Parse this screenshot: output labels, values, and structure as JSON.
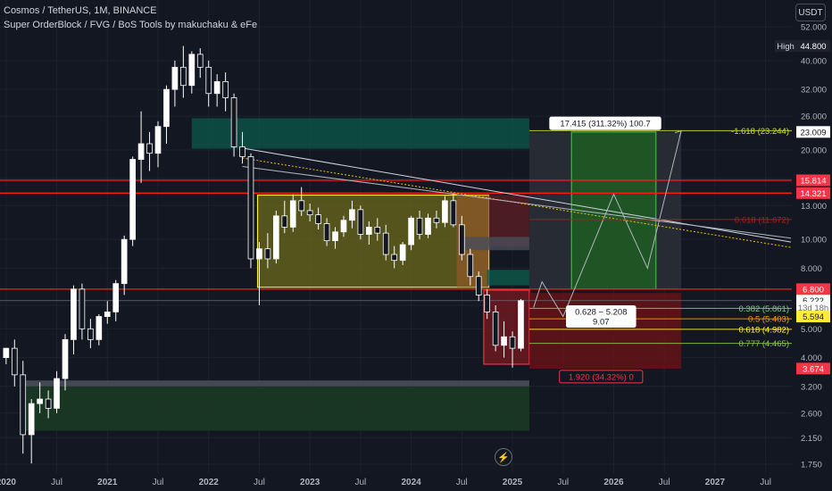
{
  "header": {
    "title": "Cosmos / TetherUS, 1M, BINANCE",
    "indicator": "Super OrderBlock / FVG / BoS Tools by makuchaku & eFe"
  },
  "currency_button": "USDT",
  "tv_logo_glyph": "⚡",
  "colors": {
    "background": "#131722",
    "up_candle": "#ffffff",
    "down_candle": "#ffffff",
    "level_red": "#ff1a1a",
    "zone_yellow": "#ffeb3b",
    "zone_teal": "#26a69a",
    "target_green": "#4caf50",
    "stop_red": "#f23645"
  },
  "chart_data": {
    "type": "candlestick",
    "scale": "log",
    "y_ticks": [
      1.75,
      2.15,
      2.6,
      3.2,
      4.0,
      5.0,
      6.0,
      8.0,
      10.0,
      13.0,
      16.0,
      20.0,
      26.0,
      32.0,
      40.0,
      52.0
    ],
    "y_tick_labels": [
      "1.750",
      "2.150",
      "2.600",
      "3.200",
      "4.000",
      "5.000",
      "6.000",
      "8.000",
      "10.000",
      "13.000",
      "16.000",
      "20.000",
      "26.000",
      "32.000",
      "40.000",
      "52.000"
    ],
    "x_ticks": [
      {
        "label": "2020",
        "t": 0
      },
      {
        "label": "Jul",
        "t": 6
      },
      {
        "label": "2021",
        "t": 12
      },
      {
        "label": "Jul",
        "t": 18
      },
      {
        "label": "2022",
        "t": 24
      },
      {
        "label": "Jul",
        "t": 30
      },
      {
        "label": "2023",
        "t": 36
      },
      {
        "label": "Jul",
        "t": 42
      },
      {
        "label": "2024",
        "t": 48
      },
      {
        "label": "Jul",
        "t": 54
      },
      {
        "label": "2025",
        "t": 60
      },
      {
        "label": "Jul",
        "t": 66
      },
      {
        "label": "2026",
        "t": 72
      },
      {
        "label": "Jul",
        "t": 78
      },
      {
        "label": "2027",
        "t": 84
      },
      {
        "label": "Jul",
        "t": 90
      }
    ],
    "t_start": -0.3,
    "t_end": 93.0,
    "price_labels": [
      {
        "label": "High",
        "value": "44.800",
        "price": 44.8,
        "style": "high"
      },
      {
        "label": "",
        "value": "23.009",
        "price": 23.009,
        "style": "white"
      },
      {
        "label": "",
        "value": "15.814",
        "price": 15.814,
        "style": "red"
      },
      {
        "label": "",
        "value": "14.321",
        "price": 14.321,
        "style": "red"
      },
      {
        "label": "",
        "value": "6.800",
        "price": 6.8,
        "style": "red"
      },
      {
        "label": "",
        "value": "6.222",
        "price": 6.222,
        "style": "current"
      },
      {
        "label": "",
        "value": "13d 18h",
        "price": 5.9,
        "style": "countdown"
      },
      {
        "label": "",
        "value": "5.594",
        "price": 5.5,
        "style": "yellow"
      },
      {
        "label": "",
        "value": "3.674",
        "price": 3.674,
        "style": "red"
      }
    ],
    "horizontal_levels": [
      {
        "price": 15.814,
        "color": "#ff1a1a"
      },
      {
        "price": 14.321,
        "color": "#ff1a1a"
      },
      {
        "price": 6.8,
        "color": "#ff1a1a"
      }
    ],
    "fib_levels": [
      {
        "label": "-1.618 (23.244)",
        "price": 23.244,
        "color": "#cddc39"
      },
      {
        "label": "0.618 (11.672)",
        "price": 11.672,
        "color": "#b71c1c"
      },
      {
        "label": "0.382 (5.861)",
        "price": 5.861,
        "color": "#81c784"
      },
      {
        "label": "0.5 (5.403)",
        "price": 5.403,
        "color": "#ff9800"
      },
      {
        "label": "0.618 (4.982)",
        "price": 4.982,
        "color": "#ffeb3b"
      },
      {
        "label": "0.777 (4.465)",
        "price": 4.465,
        "color": "#8bc34a"
      }
    ],
    "zones": [
      {
        "t0": 22,
        "t1": 62,
        "p0": 20.2,
        "p1": 25.6,
        "color": "#0b5a4a",
        "opacity": 0.75
      },
      {
        "t0": 29.8,
        "t1": 57.2,
        "p0": 6.9,
        "p1": 14.1,
        "color": "#6b6a1b",
        "opacity": 0.75,
        "border": "#ffeb3b"
      },
      {
        "t0": 53.4,
        "t1": 57.2,
        "p0": 6.9,
        "p1": 14.1,
        "color": "#9c5a2a",
        "opacity": 0.6
      },
      {
        "t0": 57.2,
        "t1": 62,
        "p0": 9.5,
        "p1": 14.1,
        "color": "#5a1e22",
        "opacity": 0.8
      },
      {
        "t0": 54,
        "t1": 62,
        "p0": 9.2,
        "p1": 10.2,
        "color": "#4a4e5a",
        "opacity": 0.8
      },
      {
        "t0": 57,
        "t1": 62,
        "p0": 7.0,
        "p1": 7.9,
        "color": "#0b5a4a",
        "opacity": 0.8
      },
      {
        "t0": 56.6,
        "t1": 62,
        "p0": 3.8,
        "p1": 6.75,
        "color": "#7a1820",
        "opacity": 0.75,
        "border": "#f23645"
      },
      {
        "t0": 62,
        "t1": 80,
        "p0": 3.67,
        "p1": 6.6,
        "color": "#6a1318",
        "opacity": 0.8
      },
      {
        "t0": 62,
        "t1": 80,
        "p0": 6.8,
        "p1": 23.0,
        "color": "#2a2d36",
        "opacity": 0.9
      },
      {
        "t0": 67,
        "t1": 77,
        "p0": 6.8,
        "p1": 23.0,
        "color": "#1f5a23",
        "opacity": 0.9,
        "border": "#4caf50"
      },
      {
        "t0": 2,
        "t1": 62,
        "p0": 2.27,
        "p1": 3.2,
        "color": "#1b3a22",
        "opacity": 0.9
      },
      {
        "t0": 2,
        "t1": 62,
        "p0": 3.2,
        "p1": 3.35,
        "color": "#4a4e5a",
        "opacity": 0.9
      }
    ],
    "trend_lines": [
      {
        "t0": 28,
        "p0": 20.3,
        "t1": 93,
        "p1": 9.8,
        "color": "#d1d4dc",
        "dash": ""
      },
      {
        "t0": 28,
        "p0": 18.8,
        "t1": 93,
        "p1": 9.4,
        "color": "#f0c000",
        "dash": "2,2"
      },
      {
        "t0": 28,
        "p0": 17.6,
        "t1": 93,
        "p1": 10.1,
        "color": "#b0b3bd",
        "dash": ""
      }
    ],
    "projection_path": [
      {
        "t": 62.5,
        "p": 5.9
      },
      {
        "t": 63.5,
        "p": 7.2
      },
      {
        "t": 66,
        "p": 5.5
      },
      {
        "t": 72,
        "p": 14.2
      },
      {
        "t": 76,
        "p": 8.0
      },
      {
        "t": 80,
        "p": 23.2
      }
    ],
    "measure_boxes": [
      {
        "text": "17.415 (311.32%) 100.7",
        "t": 71,
        "price": 24.6,
        "style": "white"
      },
      {
        "text": "0.628 ~ 5.208",
        "text2": "9.07",
        "t": 70.5,
        "price": 5.5,
        "style": "white"
      },
      {
        "text": "1.920 (34.32%) 0",
        "t": 70.5,
        "price": 3.45,
        "style": "red"
      }
    ],
    "candles": [
      [
        0,
        4.0,
        4.3,
        3.8,
        4.3
      ],
      [
        1,
        4.3,
        4.6,
        3.2,
        3.5
      ],
      [
        2,
        3.5,
        3.9,
        1.9,
        2.2
      ],
      [
        3,
        2.2,
        2.9,
        1.76,
        2.8
      ],
      [
        4,
        2.8,
        3.3,
        2.6,
        2.9
      ],
      [
        5,
        2.9,
        3.1,
        2.5,
        2.7
      ],
      [
        6,
        2.7,
        3.6,
        2.6,
        3.4
      ],
      [
        7,
        3.4,
        4.8,
        3.1,
        4.6
      ],
      [
        8,
        4.6,
        7.0,
        4.1,
        6.8
      ],
      [
        9,
        6.8,
        7.1,
        4.6,
        5.0
      ],
      [
        10,
        5.0,
        5.4,
        4.3,
        4.6
      ],
      [
        11,
        4.6,
        5.6,
        4.4,
        5.5
      ],
      [
        12,
        5.5,
        6.2,
        5.2,
        5.7
      ],
      [
        13,
        5.7,
        7.3,
        5.3,
        7.1
      ],
      [
        14,
        7.1,
        10.3,
        6.5,
        10.0
      ],
      [
        15,
        10.0,
        19.0,
        9.5,
        18.6
      ],
      [
        16,
        18.6,
        27.0,
        15.5,
        21.0
      ],
      [
        17,
        21.0,
        23.0,
        17.0,
        19.5
      ],
      [
        18,
        19.5,
        25.0,
        17.5,
        24.0
      ],
      [
        19,
        24.0,
        33.0,
        21.0,
        32.0
      ],
      [
        20,
        32.0,
        40.0,
        28.0,
        38.0
      ],
      [
        21,
        38.0,
        44.8,
        30.0,
        33.0
      ],
      [
        22,
        33.0,
        43.0,
        31.0,
        42.0
      ],
      [
        23,
        42.0,
        44.0,
        35.0,
        38.0
      ],
      [
        24,
        38.0,
        40.0,
        28.0,
        31.0
      ],
      [
        25,
        31.0,
        36.0,
        28.0,
        34.0
      ],
      [
        26,
        34.0,
        36.5,
        27.0,
        30.0
      ],
      [
        27,
        30.0,
        31.0,
        19.0,
        20.5
      ],
      [
        28,
        20.5,
        23.0,
        18.0,
        19.0
      ],
      [
        29,
        19.0,
        19.5,
        8.0,
        8.6
      ],
      [
        30,
        8.6,
        9.8,
        6.0,
        9.3
      ],
      [
        31,
        9.3,
        10.5,
        8.0,
        8.6
      ],
      [
        32,
        8.6,
        12.5,
        8.3,
        12.0
      ],
      [
        33,
        12.0,
        13.5,
        10.5,
        11.0
      ],
      [
        34,
        11.0,
        14.2,
        10.6,
        13.5
      ],
      [
        35,
        13.5,
        15.0,
        12.0,
        12.5
      ],
      [
        36,
        12.5,
        13.2,
        11.5,
        12.1
      ],
      [
        37,
        12.1,
        12.8,
        10.8,
        11.3
      ],
      [
        38,
        11.3,
        11.8,
        9.5,
        9.9
      ],
      [
        39,
        9.9,
        11.0,
        9.3,
        10.6
      ],
      [
        40,
        10.6,
        12.0,
        10.2,
        11.6
      ],
      [
        41,
        11.6,
        13.5,
        10.9,
        12.6
      ],
      [
        42,
        12.6,
        13.0,
        10.0,
        10.4
      ],
      [
        43,
        10.4,
        11.5,
        9.6,
        11.0
      ],
      [
        44,
        11.0,
        11.8,
        9.9,
        10.5
      ],
      [
        45,
        10.5,
        11.2,
        8.5,
        8.9
      ],
      [
        46,
        8.9,
        9.5,
        8.0,
        8.5
      ],
      [
        47,
        8.5,
        9.8,
        8.2,
        9.6
      ],
      [
        48,
        9.6,
        12.0,
        9.2,
        11.8
      ],
      [
        49,
        11.8,
        12.5,
        10.0,
        10.4
      ],
      [
        50,
        10.4,
        12.2,
        10.1,
        11.8
      ],
      [
        51,
        11.8,
        12.5,
        10.9,
        11.4
      ],
      [
        52,
        11.4,
        14.0,
        11.0,
        13.5
      ],
      [
        53,
        13.5,
        14.3,
        11.0,
        11.2
      ],
      [
        54,
        11.2,
        12.0,
        8.5,
        8.9
      ],
      [
        55,
        8.9,
        9.3,
        7.0,
        7.5
      ],
      [
        56,
        7.5,
        7.8,
        6.2,
        6.5
      ],
      [
        57,
        6.5,
        6.8,
        5.4,
        5.7
      ],
      [
        58,
        5.7,
        6.0,
        4.2,
        4.4
      ],
      [
        59,
        4.4,
        5.3,
        4.0,
        4.7
      ],
      [
        60,
        4.7,
        4.9,
        3.7,
        4.3
      ],
      [
        61,
        4.3,
        6.3,
        4.2,
        6.222
      ]
    ]
  }
}
